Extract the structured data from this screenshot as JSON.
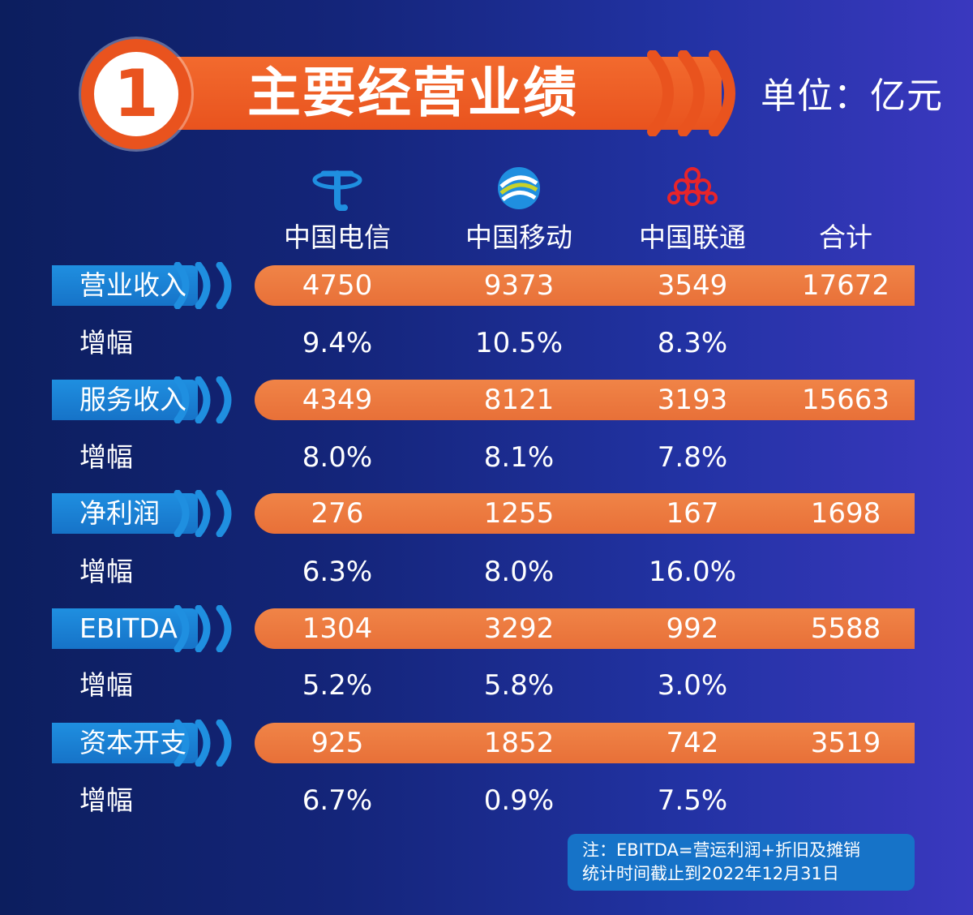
{
  "header": {
    "badge_number": "1",
    "title": "主要经营业绩",
    "unit": "单位：亿元"
  },
  "columns": [
    {
      "name": "中国电信",
      "logo": "china-telecom-logo"
    },
    {
      "name": "中国移动",
      "logo": "china-mobile-logo"
    },
    {
      "name": "中国联通",
      "logo": "china-unicom-logo"
    },
    {
      "name": "合计",
      "logo": ""
    }
  ],
  "rows": [
    {
      "label": "营业收入",
      "values": [
        "4750",
        "9373",
        "3549",
        "17672"
      ],
      "growth_label": "增幅",
      "growth": [
        "9.4%",
        "10.5%",
        "8.3%"
      ]
    },
    {
      "label": "服务收入",
      "values": [
        "4349",
        "8121",
        "3193",
        "15663"
      ],
      "growth_label": "增幅",
      "growth": [
        "8.0%",
        "8.1%",
        "7.8%"
      ]
    },
    {
      "label": "净利润",
      "values": [
        "276",
        "1255",
        "167",
        "1698"
      ],
      "growth_label": "增幅",
      "growth": [
        "6.3%",
        "8.0%",
        "16.0%"
      ]
    },
    {
      "label": "EBITDA",
      "values": [
        "1304",
        "3292",
        "992",
        "5588"
      ],
      "growth_label": "增幅",
      "growth": [
        "5.2%",
        "5.8%",
        "3.0%"
      ]
    },
    {
      "label": "资本开支",
      "values": [
        "925",
        "1852",
        "742",
        "3519"
      ],
      "growth_label": "增幅",
      "growth": [
        "6.7%",
        "0.9%",
        "7.5%"
      ]
    }
  ],
  "note": {
    "line1": "注：EBITDA=营运利润+折旧及摊销",
    "line2": "统计时间截止到2022年12月31日"
  },
  "colors": {
    "orange": "#e9531e",
    "value_bar": "#ec7a3f",
    "label_bar": "#1a82d6",
    "background": "#14257a"
  }
}
